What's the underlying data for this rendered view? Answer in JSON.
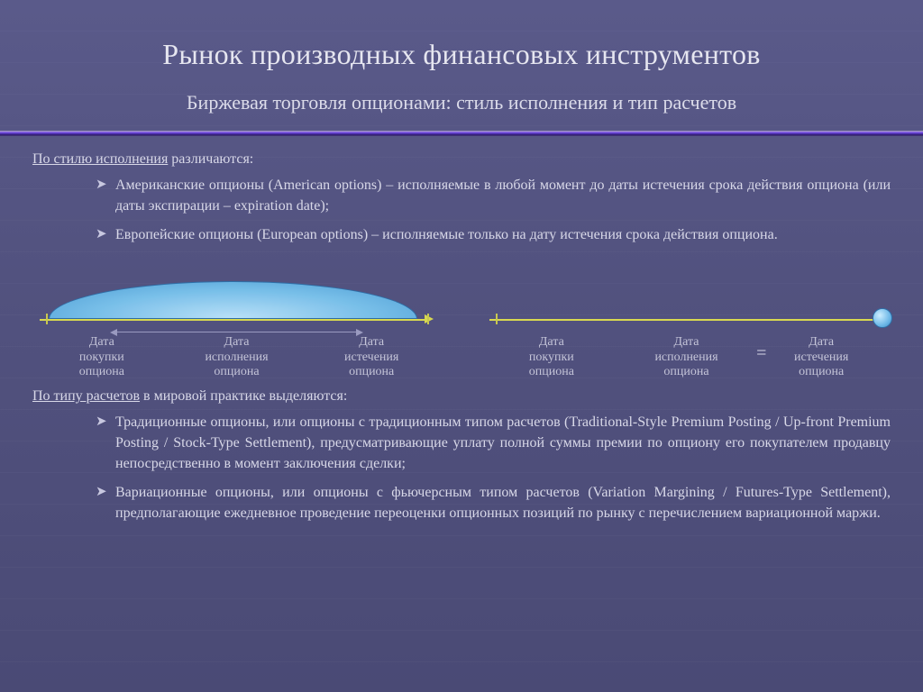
{
  "colors": {
    "arrow_american": "#d8d850",
    "arrow_european": "#d8d850",
    "arc_fill": "#79c4ee",
    "dot_fill": "#6fb9e8",
    "accent_divider": "#7a4ce0",
    "text": "#d8d8e8"
  },
  "title": "Рынок производных финансовых инструментов",
  "subtitle": "Биржевая торговля опционами: стиль исполнения и тип расчетов",
  "section1": {
    "lead_underlined": "По стилю исполнения",
    "lead_rest": " различаются:",
    "bullets": [
      "Американские опционы (American options) – исполняемые в любой момент до даты истечения срока действия опциона (или даты экспирации – expiration date);",
      "Европейские опционы (European options) – исполняемые только на дату истечения срока действия опциона."
    ]
  },
  "diagram": {
    "american": {
      "labels": [
        "Дата\nпокупки\nопциона",
        "Дата\nисполнения\nопциона",
        "Дата\nистечения\nопциона"
      ],
      "tick_positions_pct": [
        3,
        97
      ]
    },
    "european": {
      "labels": [
        "Дата\nпокупки\nопциона",
        "Дата\nисполнения\nопциона",
        "Дата\nистечения\nопциона"
      ],
      "equals_between_last_two": true,
      "tick_positions_pct": [
        3
      ]
    }
  },
  "section2": {
    "lead_underlined": "По типу расчетов",
    "lead_rest": " в мировой практике выделяются:",
    "bullets": [
      "Традиционные опционы, или опционы с традиционным типом расчетов (Traditional-Style Premium Posting / Up-front Premium Posting / Stock-Type Settlement), предусматривающие уплату полной суммы премии по опциону его покупателем продавцу непосредственно в момент заключения сделки;",
      "Вариационные опционы, или опционы с фьючерсным типом расчетов (Variation Margining / Futures-Type Settlement), предполагающие ежедневное проведение переоценки опционных позиций по рынку с перечислением вариационной маржи."
    ]
  }
}
